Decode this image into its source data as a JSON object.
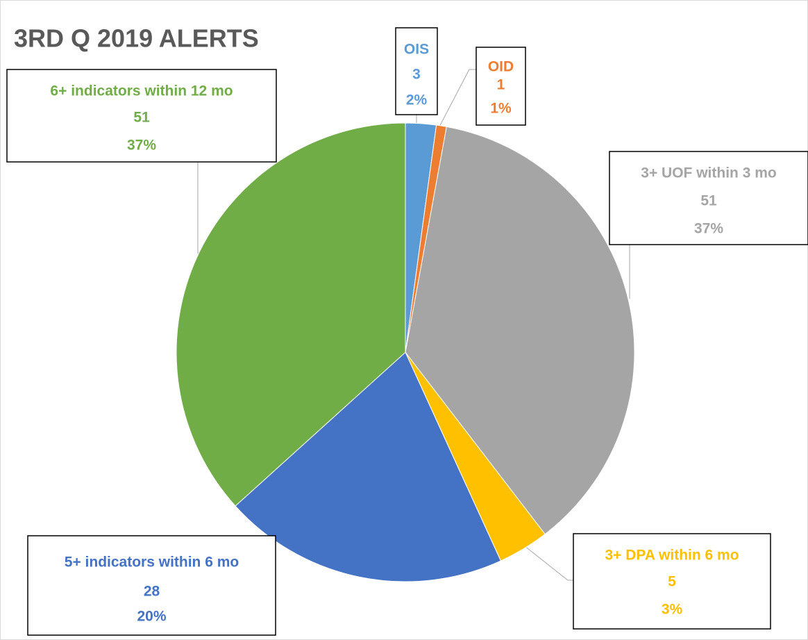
{
  "chart_data": {
    "type": "pie",
    "title": "3RD Q 2019 ALERTS",
    "categories": [
      "OIS",
      "OID",
      "3+ UOF within 3 mo",
      "3+ DPA within 6 mo",
      "5+ indicators within 6 mo",
      "6+ indicators within 12 mo"
    ],
    "values": [
      3,
      1,
      51,
      5,
      28,
      51
    ],
    "percent_labels": [
      "2%",
      "1%",
      "37%",
      "3%",
      "20%",
      "37%"
    ],
    "colors": [
      "#5b9bd5",
      "#ed7d31",
      "#a5a5a5",
      "#ffc000",
      "#4472c4",
      "#70ad47"
    ]
  }
}
